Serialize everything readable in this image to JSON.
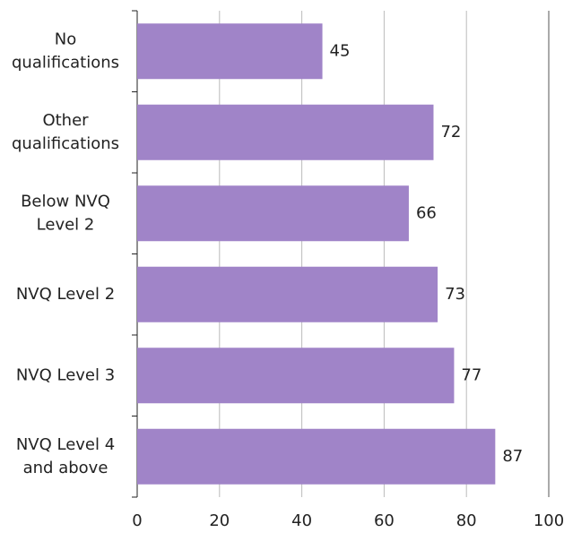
{
  "chart_data": {
    "type": "bar",
    "orientation": "horizontal",
    "categories": [
      [
        "No",
        "qualifications"
      ],
      [
        "Other",
        "qualifications"
      ],
      [
        "Below NVQ",
        "Level 2"
      ],
      [
        "NVQ Level 2"
      ],
      [
        "NVQ Level 3"
      ],
      [
        "NVQ Level 4",
        "and above"
      ]
    ],
    "values": [
      45,
      72,
      66,
      73,
      77,
      87
    ],
    "color": "#a084c8",
    "xlim": [
      0,
      100
    ],
    "xticks": [
      0,
      20,
      40,
      60,
      80,
      100
    ],
    "grid": true
  }
}
